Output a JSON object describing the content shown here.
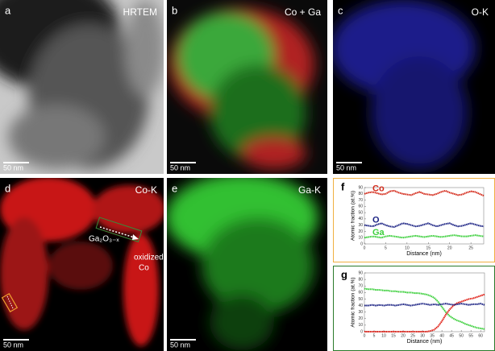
{
  "panels": [
    {
      "letter": "a",
      "label": "HRTEM",
      "scale": "50 nm"
    },
    {
      "letter": "b",
      "label": "Co + Ga",
      "scale": "50 nm"
    },
    {
      "letter": "c",
      "label": "O-K",
      "scale": "50 nm"
    },
    {
      "letter": "d",
      "label": "Co-K",
      "scale": "50 nm"
    },
    {
      "letter": "e",
      "label": "Ga-K",
      "scale": "50 nm"
    }
  ],
  "annotations": {
    "phase": "Ga₂O₃₋ₓ",
    "oxidized": "oxidized",
    "co": "Co"
  },
  "chart_data": [
    {
      "type": "line",
      "panel_label": "f",
      "xlabel": "Distance (nm)",
      "ylabel": "Atomic fraction (at.%)",
      "xlim": [
        0,
        28
      ],
      "xticks": [
        0,
        5,
        10,
        15,
        20,
        25
      ],
      "ylim": [
        0,
        90
      ],
      "yticks": [
        0,
        10,
        20,
        30,
        40,
        50,
        60,
        70,
        80,
        90
      ],
      "x": [
        0,
        1,
        2,
        3,
        4,
        5,
        6,
        7,
        8,
        9,
        10,
        11,
        12,
        13,
        14,
        15,
        16,
        17,
        18,
        19,
        20,
        21,
        22,
        23,
        24,
        25,
        26,
        27,
        28
      ],
      "series": [
        {
          "name": "Co",
          "color": "#d42a1a",
          "values": [
            80,
            82,
            83,
            81,
            79,
            80,
            84,
            85,
            82,
            80,
            79,
            78,
            81,
            83,
            80,
            79,
            78,
            80,
            83,
            85,
            82,
            80,
            78,
            79,
            82,
            84,
            83,
            80,
            77
          ]
        },
        {
          "name": "O",
          "color": "#1c2384",
          "values": [
            30,
            29,
            28,
            31,
            33,
            30,
            28,
            27,
            30,
            33,
            32,
            30,
            28,
            29,
            31,
            33,
            30,
            28,
            30,
            32,
            33,
            30,
            28,
            29,
            31,
            33,
            31,
            29,
            28
          ]
        },
        {
          "name": "Ga",
          "color": "#3ccf3c",
          "values": [
            10,
            11,
            12,
            11,
            10,
            12,
            13,
            12,
            11,
            10,
            11,
            12,
            13,
            12,
            11,
            12,
            13,
            12,
            11,
            12,
            13,
            14,
            13,
            12,
            12,
            13,
            14,
            13,
            12
          ]
        }
      ]
    },
    {
      "type": "line",
      "panel_label": "g",
      "xlabel": "Distance (nm)",
      "ylabel": "Atomic fraction (at.%)",
      "xlim": [
        0,
        62
      ],
      "xticks": [
        0,
        5,
        10,
        15,
        20,
        25,
        30,
        35,
        40,
        45,
        50,
        55,
        60
      ],
      "ylim": [
        0,
        90
      ],
      "yticks": [
        0,
        10,
        20,
        30,
        40,
        50,
        60,
        70,
        80,
        90
      ],
      "x": [
        0,
        2,
        4,
        6,
        8,
        10,
        12,
        14,
        16,
        18,
        20,
        22,
        24,
        26,
        28,
        30,
        32,
        34,
        36,
        38,
        40,
        42,
        44,
        46,
        48,
        50,
        52,
        54,
        56,
        58,
        60,
        62
      ],
      "series": [
        {
          "color": "#3ccf3c",
          "values": [
            66,
            65,
            65,
            64,
            64,
            63,
            63,
            62,
            62,
            61,
            61,
            60,
            60,
            59,
            59,
            58,
            57,
            55,
            52,
            46,
            38,
            30,
            24,
            20,
            17,
            15,
            12,
            10,
            8,
            6,
            5,
            4
          ]
        },
        {
          "color": "#e0231a",
          "values": [
            0,
            0,
            0,
            0,
            0,
            0,
            0,
            0,
            0,
            0,
            0,
            0,
            0,
            0,
            0,
            0,
            0,
            1,
            3,
            8,
            16,
            26,
            34,
            40,
            44,
            46,
            48,
            50,
            51,
            53,
            55,
            57
          ]
        },
        {
          "color": "#1c2384",
          "values": [
            40,
            40,
            41,
            40,
            41,
            40,
            41,
            41,
            40,
            41,
            42,
            41,
            40,
            41,
            42,
            43,
            42,
            41,
            42,
            41,
            42,
            43,
            42,
            41,
            42,
            43,
            42,
            41,
            42,
            42,
            43,
            41
          ]
        }
      ]
    }
  ]
}
